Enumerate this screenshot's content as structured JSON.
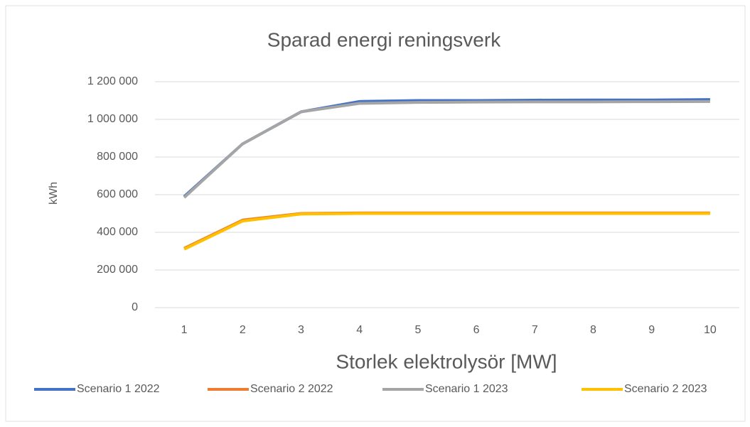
{
  "chart_data": {
    "type": "line",
    "title": "Sparad energi reningsverk",
    "x_label": "Storlek elektrolysör [MW]",
    "y_label": "kWh",
    "categories": [
      "1",
      "2",
      "3",
      "4",
      "5",
      "6",
      "7",
      "8",
      "9",
      "10"
    ],
    "series": [
      {
        "name": "Scenario 1 2022",
        "color": "#4472c4",
        "values": [
          590000,
          870000,
          1040000,
          1095000,
          1100000,
          1100000,
          1102000,
          1103000,
          1103000,
          1105000
        ]
      },
      {
        "name": "Scenario 2 2022",
        "color": "#ed7d31",
        "values": [
          315000,
          465000,
          500000,
          503000,
          503000,
          503000,
          503000,
          503000,
          503000,
          503000
        ]
      },
      {
        "name": "Scenario 1 2023",
        "color": "#a5a5a5",
        "values": [
          585000,
          870000,
          1040000,
          1085000,
          1090000,
          1092000,
          1093000,
          1093000,
          1094000,
          1095000
        ]
      },
      {
        "name": "Scenario 2 2023",
        "color": "#ffc000",
        "values": [
          310000,
          460000,
          497000,
          500000,
          500000,
          500000,
          500000,
          500000,
          500000,
          500000
        ]
      }
    ],
    "ylim": [
      0,
      1200000
    ],
    "yticks": [
      0,
      {
        "value": 200000,
        "label": "200 000"
      },
      {
        "value": 400000,
        "label": "400 000"
      },
      {
        "value": 600000,
        "label": "600 000"
      },
      {
        "value": 800000,
        "label": "800 000"
      },
      {
        "value": 1000000,
        "label": "1 000 000"
      },
      {
        "value": 1200000,
        "label": "1 200 000"
      }
    ],
    "grid": true,
    "legend": "bottom"
  }
}
